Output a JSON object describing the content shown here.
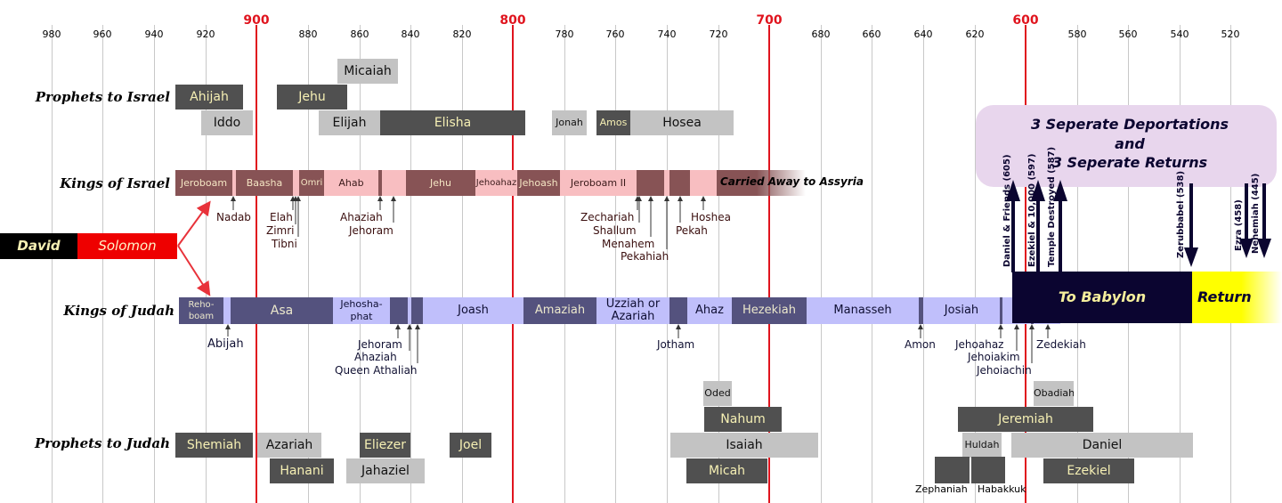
{
  "axis": {
    "ticks": [
      "980",
      "960",
      "940",
      "920",
      "900",
      "880",
      "860",
      "840",
      "820",
      "800",
      "780",
      "760",
      "740",
      "720",
      "700",
      "680",
      "660",
      "640",
      "620",
      "600",
      "580",
      "560",
      "540",
      "520"
    ],
    "centuries": [
      "900",
      "800",
      "700",
      "600"
    ]
  },
  "row_labels": {
    "prophets_israel": "Prophets to Israel",
    "kings_israel": "Kings of Israel",
    "kings_judah": "Kings of Judah",
    "prophets_judah": "Prophets to Judah"
  },
  "united": {
    "david": "David",
    "solomon": "Solomon"
  },
  "prophets_israel": {
    "ahijah": "Ahijah",
    "iddo": "Iddo",
    "micaiah": "Micaiah",
    "jehu": "Jehu",
    "elijah": "Elijah",
    "elisha": "Elisha",
    "jonah": "Jonah",
    "amos": "Amos",
    "hosea": "Hosea"
  },
  "kings_israel": {
    "jeroboam": "Jeroboam",
    "baasha": "Baasha",
    "omri": "Omri",
    "ahab": "Ahab",
    "jehu": "Jehu",
    "jehoahaz": "Jehoahaz",
    "jehoash": "Jehoash",
    "jeroboam2": "Jeroboam II",
    "carried": "Carried Away to Assyria",
    "nadab": "Nadab",
    "elah": "Elah",
    "zimri": "Zimri",
    "tibni": "Tibni",
    "ahaziah": "Ahaziah",
    "jehoram": "Jehoram",
    "zechariah": "Zechariah",
    "shallum": "Shallum",
    "menahem": "Menahem",
    "pekahiah": "Pekahiah",
    "pekah": "Pekah",
    "hoshea": "Hoshea"
  },
  "kings_judah": {
    "rehoboam_1": "Reho-",
    "rehoboam_2": "boam",
    "asa": "Asa",
    "jehoshaphat_1": "Jehosha-",
    "jehoshaphat_2": "phat",
    "joash": "Joash",
    "amaziah": "Amaziah",
    "uzziah_1": "Uzziah or",
    "uzziah_2": "Azariah",
    "ahaz": "Ahaz",
    "hezekiah": "Hezekiah",
    "manasseh": "Manasseh",
    "josiah": "Josiah",
    "abijah": "Abijah",
    "jehoram": "Jehoram",
    "ahaziah": "Ahaziah",
    "athaliah": "Queen Athaliah",
    "jotham": "Jotham",
    "amon": "Amon",
    "jehoahaz": "Jehoahaz",
    "jehoiakim": "Jehoiakim",
    "jehoiachin": "Jehoiachin",
    "zedekiah": "Zedekiah"
  },
  "exile": {
    "to_babylon": "To Babylon",
    "return": "Return",
    "note_1": "3 Seperate Deportations",
    "note_2": "and",
    "note_3": "3 Seperate Returns",
    "daniel_friends": "Daniel & Friends (605)",
    "ezekiel": "Ezekiel & 10,000 (597)",
    "temple": "Temple Destroyed (587)",
    "zerubbabel": "Zerubbabel (538)",
    "ezra": "Ezra (458)",
    "nehemiah": "Nehemiah (445)"
  },
  "prophets_judah": {
    "shemiah": "Shemiah",
    "azariah": "Azariah",
    "hanani": "Hanani",
    "eliezer": "Eliezer",
    "jahaziel": "Jahaziel",
    "joel": "Joel",
    "oded": "Oded",
    "nahum": "Nahum",
    "isaiah": "Isaiah",
    "micah": "Micah",
    "obadiah": "Obadiah",
    "jeremiah": "Jeremiah",
    "huldah": "Huldah",
    "daniel": "Daniel",
    "zephaniah": "Zephaniah",
    "habakkuk": "Habakkuk",
    "ezekiel": "Ezekiel"
  },
  "colors": {
    "century_line": "#e0141e",
    "israel_dark": "#875355",
    "israel_light": "#f8bec1",
    "judah_dark": "#54527e",
    "judah_light": "#c0bffb",
    "prophet_dark": "#505050",
    "prophet_light": "#c3c3c3",
    "exile": "#0b0530",
    "return": "#ffff00",
    "note_bg": "#e8d6ed"
  }
}
